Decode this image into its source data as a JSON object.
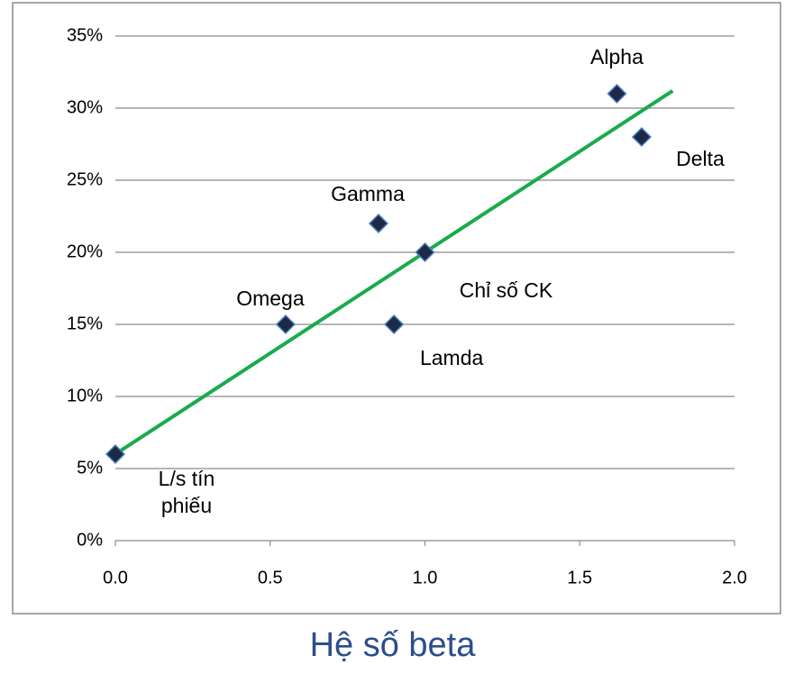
{
  "chart_data": {
    "type": "scatter",
    "x": [
      0,
      0.55,
      0.85,
      1.0,
      0.9,
      1.62,
      1.7
    ],
    "values": [
      6,
      15,
      22,
      20,
      15,
      31,
      28
    ],
    "point_labels": [
      "L/s tín phiếu",
      "Omega",
      "Gamma",
      "Chỉ số CK",
      "Lamda",
      "Alpha",
      "Delta"
    ],
    "marker_color": "#1c2a48",
    "trend_line": {
      "x": [
        0,
        1.8
      ],
      "values": [
        6,
        31.2
      ],
      "color": "#1aab4b"
    },
    "xlim": [
      0,
      2
    ],
    "ylim": [
      0,
      35
    ],
    "xticks": [
      {
        "value": 0,
        "label": "0.0"
      },
      0.5,
      {
        "value": 1,
        "label": "1.0"
      },
      1.5,
      {
        "value": 2,
        "label": "2.0"
      }
    ],
    "yticks": [
      {
        "value": 0,
        "label": "0%"
      },
      {
        "value": 5,
        "label": "5%"
      },
      {
        "value": 10,
        "label": "10%"
      },
      {
        "value": 15,
        "label": "15%"
      },
      {
        "value": 20,
        "label": "20%"
      },
      {
        "value": 25,
        "label": "25%"
      },
      {
        "value": 30,
        "label": "30%"
      },
      {
        "value": 35,
        "label": "35%"
      }
    ],
    "grid": true,
    "x_label": "Hệ số beta"
  }
}
